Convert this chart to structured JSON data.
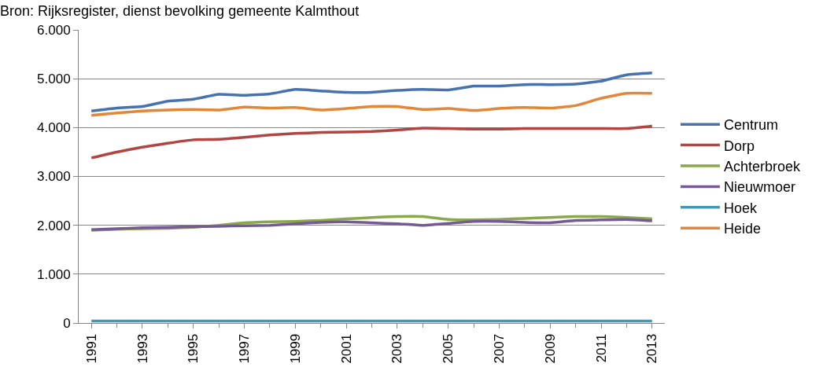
{
  "chart_data": {
    "type": "line",
    "title": "Bron: Rijksregister, dienst bevolking gemeente Kalmthout",
    "x": [
      1991,
      1992,
      1993,
      1994,
      1995,
      1996,
      1997,
      1998,
      1999,
      2000,
      2001,
      2002,
      2003,
      2004,
      2005,
      2006,
      2007,
      2008,
      2009,
      2010,
      2011,
      2012,
      2013
    ],
    "series": [
      {
        "name": "Centrum",
        "color": "#4673b0",
        "values": [
          4340,
          4400,
          4430,
          4540,
          4580,
          4680,
          4660,
          4690,
          4780,
          4750,
          4720,
          4720,
          4760,
          4780,
          4770,
          4850,
          4850,
          4880,
          4880,
          4890,
          4950,
          5080,
          5120
        ]
      },
      {
        "name": "Dorp",
        "color": "#b04542",
        "values": [
          3380,
          3500,
          3600,
          3680,
          3750,
          3760,
          3800,
          3850,
          3880,
          3900,
          3910,
          3920,
          3950,
          3990,
          3980,
          3970,
          3970,
          3980,
          3980,
          3980,
          3980,
          3980,
          4030
        ]
      },
      {
        "name": "Achterbroek",
        "color": "#89a84a",
        "values": [
          1900,
          1920,
          1930,
          1940,
          1960,
          2000,
          2050,
          2070,
          2080,
          2100,
          2130,
          2160,
          2180,
          2180,
          2120,
          2110,
          2120,
          2140,
          2160,
          2180,
          2180,
          2160,
          2130
        ]
      },
      {
        "name": "Nieuwmoer",
        "color": "#765a96",
        "values": [
          1910,
          1930,
          1950,
          1960,
          1970,
          1980,
          1990,
          2000,
          2030,
          2060,
          2070,
          2050,
          2030,
          2000,
          2040,
          2080,
          2080,
          2060,
          2050,
          2100,
          2110,
          2120,
          2090
        ]
      },
      {
        "name": "Hoek",
        "color": "#4498b0",
        "values": [
          40,
          40,
          40,
          40,
          40,
          40,
          40,
          40,
          40,
          40,
          40,
          40,
          40,
          40,
          40,
          40,
          40,
          40,
          40,
          40,
          40,
          40,
          40
        ]
      },
      {
        "name": "Heide",
        "color": "#e2863a",
        "values": [
          4250,
          4300,
          4340,
          4360,
          4370,
          4360,
          4420,
          4400,
          4410,
          4360,
          4390,
          4430,
          4430,
          4370,
          4390,
          4350,
          4390,
          4410,
          4400,
          4450,
          4600,
          4700,
          4700
        ]
      }
    ],
    "xlim": [
      1990.5,
      2013.5
    ],
    "xticks": [
      1991,
      1993,
      1995,
      1997,
      1999,
      2001,
      2003,
      2005,
      2007,
      2009,
      2011,
      2013
    ],
    "ylim": [
      0,
      6000
    ],
    "yticks": [
      {
        "value": 0,
        "label": "0"
      },
      {
        "value": 1000,
        "label": "1.000"
      },
      {
        "value": 2000,
        "label": "2.000"
      },
      {
        "value": 3000,
        "label": "3.000"
      },
      {
        "value": 4000,
        "label": "4.000"
      },
      {
        "value": 5000,
        "label": "5.000"
      },
      {
        "value": 6000,
        "label": "6.000"
      }
    ],
    "grid": "y",
    "legend": "right",
    "marker": "none",
    "line_style": "solid"
  }
}
